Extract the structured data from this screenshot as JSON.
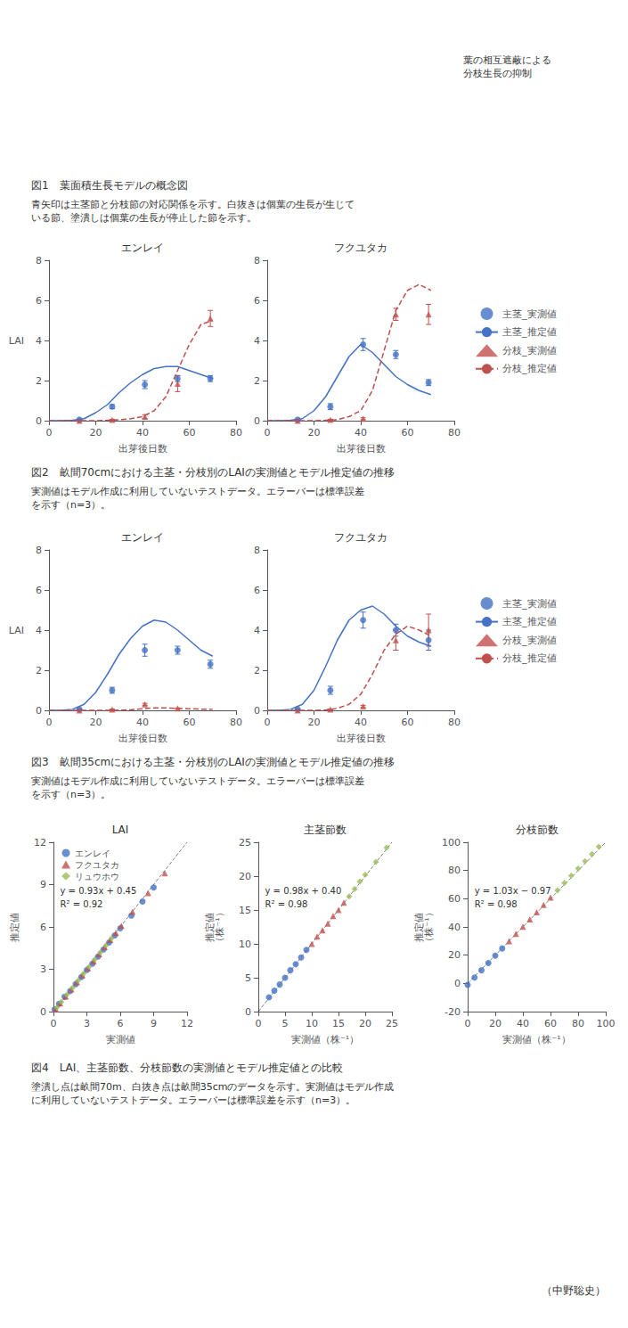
{
  "chart_data": [
    {
      "type": "text",
      "annotations": [
        "葉の相互遮蔽による\n分枝生長の抑制"
      ]
    },
    {
      "type": "text",
      "annotations": [
        "図1　葉面積生長モデルの概念図",
        "青矢印は主茎節と分枝節の対応関係を示す。白抜きは個葉の生長が生じて\nいる節、塗潰しは個葉の生長が停止した節を示す。"
      ]
    },
    {
      "type": "line",
      "title": "エンレイ",
      "xlabel": "出芽後日数",
      "ylabel": "LAI",
      "xlim": [
        0,
        80
      ],
      "ylim": [
        0,
        8
      ],
      "xticks": [
        0,
        20,
        40,
        60,
        80
      ],
      "yticks": [
        0,
        2,
        4,
        6,
        8
      ],
      "grid": false,
      "series": [
        {
          "name": "主茎_実測値",
          "type": "scatter",
          "marker": "circle",
          "color": "#4472C4",
          "x": [
            13,
            27,
            41,
            55,
            69
          ],
          "values": [
            0.05,
            0.7,
            1.8,
            2.1,
            2.1
          ],
          "errors": [
            0.02,
            0.1,
            0.2,
            0.15,
            0.15
          ]
        },
        {
          "name": "主茎_推定値",
          "type": "line",
          "line_style": "solid",
          "color": "#4472C4",
          "x": [
            0,
            5,
            10,
            15,
            20,
            25,
            30,
            35,
            40,
            45,
            50,
            55,
            60,
            65,
            70
          ],
          "values": [
            0,
            0,
            0.02,
            0.1,
            0.4,
            0.8,
            1.4,
            1.9,
            2.3,
            2.6,
            2.7,
            2.7,
            2.5,
            2.3,
            2.1
          ]
        },
        {
          "name": "分枝_実測値",
          "type": "scatter",
          "marker": "triangle",
          "color": "#C0504D",
          "x": [
            13,
            27,
            41,
            55,
            69
          ],
          "values": [
            0.0,
            0.05,
            0.2,
            1.85,
            5.1
          ],
          "errors": [
            0.0,
            0.02,
            0.1,
            0.4,
            0.4
          ]
        },
        {
          "name": "分枝_推定値",
          "type": "line",
          "line_style": "dashed",
          "color": "#C0504D",
          "x": [
            0,
            5,
            10,
            15,
            20,
            25,
            30,
            35,
            40,
            45,
            50,
            55,
            60,
            65,
            70
          ],
          "values": [
            0,
            0,
            0,
            0,
            0,
            0.02,
            0.05,
            0.1,
            0.2,
            0.5,
            1.2,
            2.5,
            3.8,
            4.8,
            5.0
          ]
        }
      ]
    },
    {
      "type": "line",
      "title": "フクユタカ",
      "xlabel": "出芽後日数",
      "xlim": [
        0,
        80
      ],
      "ylim": [
        0,
        8
      ],
      "xticks": [
        0,
        20,
        40,
        60,
        80
      ],
      "yticks": [
        0,
        2,
        4,
        6,
        8
      ],
      "grid": false,
      "legend": "right",
      "series": [
        {
          "name": "主茎_実測値",
          "type": "scatter",
          "marker": "circle",
          "color": "#4472C4",
          "x": [
            13,
            27,
            41,
            55,
            69
          ],
          "values": [
            0.05,
            0.7,
            3.8,
            3.3,
            1.9
          ],
          "errors": [
            0.02,
            0.15,
            0.3,
            0.2,
            0.15
          ]
        },
        {
          "name": "主茎_推定値",
          "type": "line",
          "line_style": "solid",
          "color": "#4472C4",
          "x": [
            0,
            5,
            10,
            15,
            20,
            25,
            30,
            35,
            40,
            45,
            50,
            55,
            60,
            65,
            70
          ],
          "values": [
            0,
            0,
            0.02,
            0.1,
            0.5,
            1.2,
            2.2,
            3.2,
            3.8,
            3.4,
            2.8,
            2.2,
            1.8,
            1.5,
            1.3
          ]
        },
        {
          "name": "分枝_実測値",
          "type": "scatter",
          "marker": "triangle",
          "color": "#C0504D",
          "x": [
            13,
            27,
            41,
            55,
            69
          ],
          "values": [
            0.0,
            0.05,
            0.1,
            5.3,
            5.3
          ],
          "errors": [
            0.0,
            0.02,
            0.05,
            0.3,
            0.5
          ]
        },
        {
          "name": "分枝_推定値",
          "type": "line",
          "line_style": "dashed",
          "color": "#C0504D",
          "x": [
            0,
            5,
            10,
            15,
            20,
            25,
            30,
            35,
            40,
            45,
            50,
            55,
            60,
            65,
            70
          ],
          "values": [
            0,
            0,
            0,
            0,
            0,
            0.02,
            0.05,
            0.2,
            0.5,
            1.5,
            3.5,
            5.5,
            6.5,
            6.8,
            6.5
          ]
        }
      ]
    },
    {
      "type": "text",
      "annotations": [
        "図2　畝間70cmにおける主茎・分枝別のLAIの実測値とモデル推定値の推移",
        "実測値はモデル作成に利用していないテストデータ。エラーバーは標準誤差\nを示す（n=3）。"
      ]
    },
    {
      "type": "line",
      "title": "エンレイ",
      "xlabel": "出芽後日数",
      "ylabel": "LAI",
      "xlim": [
        0,
        80
      ],
      "ylim": [
        0,
        8
      ],
      "xticks": [
        0,
        20,
        40,
        60,
        80
      ],
      "yticks": [
        0,
        2,
        4,
        6,
        8
      ],
      "grid": false,
      "series": [
        {
          "name": "主茎_実測値",
          "type": "scatter",
          "marker": "circle",
          "color": "#4472C4",
          "x": [
            13,
            27,
            41,
            55,
            69
          ],
          "values": [
            0.05,
            1.0,
            3.0,
            3.0,
            2.3
          ],
          "errors": [
            0.02,
            0.15,
            0.3,
            0.2,
            0.2
          ]
        },
        {
          "name": "主茎_推定値",
          "type": "line",
          "line_style": "solid",
          "color": "#4472C4",
          "x": [
            0,
            5,
            10,
            15,
            20,
            25,
            30,
            35,
            40,
            45,
            50,
            55,
            60,
            65,
            70
          ],
          "values": [
            0,
            0,
            0.05,
            0.3,
            0.9,
            1.8,
            2.8,
            3.6,
            4.2,
            4.5,
            4.4,
            4.0,
            3.5,
            3.0,
            2.7
          ]
        },
        {
          "name": "分枝_実測値",
          "type": "scatter",
          "marker": "triangle",
          "color": "#C0504D",
          "x": [
            13,
            27,
            41,
            55
          ],
          "values": [
            0.0,
            0.05,
            0.3,
            0.1
          ],
          "errors": [
            0.0,
            0.02,
            0.05,
            0.02
          ]
        },
        {
          "name": "分枝_推定値",
          "type": "line",
          "line_style": "dashed",
          "color": "#C0504D",
          "x": [
            0,
            5,
            10,
            15,
            20,
            25,
            30,
            35,
            40,
            45,
            50,
            55,
            60,
            65,
            70
          ],
          "values": [
            0,
            0,
            0,
            0,
            0,
            0,
            0.01,
            0.03,
            0.08,
            0.12,
            0.12,
            0.1,
            0.08,
            0.06,
            0.05
          ]
        }
      ]
    },
    {
      "type": "line",
      "title": "フクユタカ",
      "xlabel": "出芽後日数",
      "xlim": [
        0,
        80
      ],
      "ylim": [
        0,
        8
      ],
      "xticks": [
        0,
        20,
        40,
        60,
        80
      ],
      "yticks": [
        0,
        2,
        4,
        6,
        8
      ],
      "grid": false,
      "legend": "right",
      "series": [
        {
          "name": "主茎_実測値",
          "type": "scatter",
          "marker": "circle",
          "color": "#4472C4",
          "x": [
            13,
            27,
            41,
            55,
            69
          ],
          "values": [
            0.05,
            1.0,
            4.5,
            4.0,
            3.5
          ],
          "errors": [
            0.02,
            0.2,
            0.4,
            0.3,
            0.5
          ]
        },
        {
          "name": "主茎_推定値",
          "type": "line",
          "line_style": "solid",
          "color": "#4472C4",
          "x": [
            0,
            5,
            10,
            15,
            20,
            25,
            30,
            35,
            40,
            45,
            50,
            55,
            60,
            65,
            70
          ],
          "values": [
            0,
            0,
            0.05,
            0.3,
            1.0,
            2.2,
            3.5,
            4.5,
            5.0,
            5.2,
            4.8,
            4.2,
            3.7,
            3.4,
            3.2
          ]
        },
        {
          "name": "分枝_実測値",
          "type": "scatter",
          "marker": "triangle",
          "color": "#C0504D",
          "x": [
            13,
            27,
            41,
            55,
            69
          ],
          "values": [
            0.0,
            0.05,
            0.2,
            3.5,
            4.0
          ],
          "errors": [
            0.0,
            0.02,
            0.05,
            0.5,
            0.8
          ]
        },
        {
          "name": "分枝_推定値",
          "type": "line",
          "line_style": "dashed",
          "color": "#C0504D",
          "x": [
            0,
            5,
            10,
            15,
            20,
            25,
            30,
            35,
            40,
            45,
            50,
            55,
            60,
            65,
            70
          ],
          "values": [
            0,
            0,
            0,
            0,
            0,
            0.02,
            0.1,
            0.3,
            0.8,
            1.8,
            3.0,
            3.8,
            4.2,
            4.0,
            3.7
          ]
        }
      ]
    },
    {
      "type": "text",
      "annotations": [
        "図3　畝間35cmにおける主茎・分枝別のLAIの実測値とモデル推定値の推移",
        "実測値はモデル作成に利用していないテストデータ。エラーバーは標準誤差\nを示す（n=3）。"
      ]
    },
    {
      "type": "scatter",
      "title": "LAI",
      "xlabel": "実測値",
      "ylabel": "推定値",
      "xlim": [
        0,
        12
      ],
      "ylim": [
        0,
        12
      ],
      "xticks": [
        0,
        3,
        6,
        9,
        12
      ],
      "yticks": [
        0,
        3,
        6,
        9,
        12
      ],
      "grid": false,
      "legend": "upper left",
      "annotations": [
        "y = 0.93x + 0.45",
        "R² = 0.92"
      ],
      "series": [
        {
          "name": "エンレイ",
          "marker": "circle",
          "color": "#4472C4",
          "x": [
            0.1,
            0.5,
            1.0,
            1.5,
            2.0,
            2.5,
            3.0,
            3.5,
            4.0,
            4.5,
            5.0,
            5.5,
            6.0,
            7.0,
            8.0,
            9.0
          ],
          "values": [
            0.15,
            0.55,
            1.05,
            1.45,
            1.95,
            2.45,
            2.95,
            3.4,
            3.9,
            4.4,
            4.9,
            5.4,
            5.9,
            6.8,
            7.8,
            8.8
          ]
        },
        {
          "name": "フクユタカ",
          "marker": "triangle",
          "color": "#C0504D",
          "x": [
            0.2,
            0.6,
            1.1,
            1.6,
            2.1,
            2.6,
            3.1,
            3.6,
            4.1,
            4.6,
            5.1,
            5.6,
            6.1,
            7.1,
            8.5,
            10.0
          ],
          "values": [
            0.18,
            0.58,
            1.08,
            1.58,
            2.08,
            2.58,
            3.08,
            3.58,
            4.08,
            4.58,
            5.08,
            5.58,
            6.08,
            7.08,
            8.4,
            9.8
          ]
        },
        {
          "name": "リュウホウ",
          "marker": "diamond",
          "color": "#9BBB59",
          "x": [
            0.3,
            0.7,
            1.2,
            1.7,
            2.2,
            2.7,
            3.2,
            3.7,
            4.2,
            4.7,
            5.2
          ],
          "values": [
            0.28,
            0.68,
            1.18,
            1.68,
            2.18,
            2.68,
            3.18,
            3.68,
            4.18,
            4.68,
            5.18
          ]
        },
        {
          "type": "line",
          "line_style": "dashed",
          "color": "#000000",
          "x": [
            0,
            12
          ],
          "values": [
            0,
            12
          ]
        }
      ]
    },
    {
      "type": "scatter",
      "title": "主茎節数",
      "xlabel": "実測値（株⁻¹）",
      "ylabel": "推定値\n（株⁻¹）",
      "xlim": [
        0,
        25
      ],
      "ylim": [
        0,
        25
      ],
      "xticks": [
        0,
        5,
        10,
        15,
        20,
        25
      ],
      "yticks": [
        0,
        5,
        10,
        15,
        20,
        25
      ],
      "grid": false,
      "annotations": [
        "y = 0.98x + 0.40",
        "R² = 0.98"
      ],
      "series": [
        {
          "marker": "circle",
          "color": "#4472C4",
          "x": [
            2,
            3,
            4,
            5,
            6,
            7,
            8,
            9
          ],
          "values": [
            2.1,
            3.1,
            4.0,
            5.0,
            6.1,
            7.0,
            8.0,
            9.1
          ]
        },
        {
          "marker": "triangle",
          "color": "#C0504D",
          "x": [
            10,
            11,
            12,
            13,
            14,
            15,
            16
          ],
          "values": [
            10.0,
            11.1,
            12.0,
            13.0,
            14.1,
            15.0,
            16.1
          ]
        },
        {
          "marker": "diamond",
          "color": "#9BBB59",
          "x": [
            17,
            18,
            19,
            20,
            22,
            24
          ],
          "values": [
            17.0,
            18.1,
            19.2,
            20.2,
            22.1,
            24.2
          ]
        },
        {
          "type": "line",
          "line_style": "dashed",
          "color": "#000000",
          "x": [
            0,
            25
          ],
          "values": [
            0,
            25
          ]
        }
      ]
    },
    {
      "type": "scatter",
      "title": "分枝節数",
      "xlabel": "実測値（株⁻¹）",
      "ylabel": "推定値\n（株⁻¹）",
      "xlim": [
        0,
        100
      ],
      "ylim": [
        -20,
        100
      ],
      "xticks": [
        0,
        20,
        40,
        60,
        80,
        100
      ],
      "yticks": [
        -20,
        0,
        20,
        40,
        60,
        80,
        100
      ],
      "grid": false,
      "annotations": [
        "y = 1.03x − 0.97",
        "R² = 0.98"
      ],
      "series": [
        {
          "marker": "circle",
          "color": "#4472C4",
          "x": [
            0,
            5,
            10,
            15,
            20,
            25
          ],
          "values": [
            -1,
            4.15,
            9.3,
            14.45,
            19.6,
            24.75
          ]
        },
        {
          "marker": "triangle",
          "color": "#C0504D",
          "x": [
            30,
            35,
            40,
            45,
            50,
            55,
            60
          ],
          "values": [
            29.9,
            35.05,
            40.2,
            45.35,
            50.5,
            55.65,
            60.8
          ]
        },
        {
          "marker": "diamond",
          "color": "#9BBB59",
          "x": [
            65,
            70,
            75,
            80,
            85,
            90,
            95
          ],
          "values": [
            65.95,
            71.1,
            76.25,
            81.4,
            86.55,
            91.7,
            96.85
          ]
        },
        {
          "type": "line",
          "line_style": "dashed",
          "color": "#000000",
          "x": [
            0,
            100
          ],
          "values": [
            0,
            100
          ]
        }
      ]
    },
    {
      "type": "text",
      "annotations": [
        "図4　LAI、主茎節数、分枝節数の実測値とモデル推定値との比較",
        "塗潰し点は畝間70m、白抜き点は畝間35cmのデータを示す。実測値はモデル作成\nに利用していないテストデータ。エラーバーは標準誤差を示す（n=3）。"
      ]
    },
    {
      "type": "text",
      "annotations": [
        "（中野聡史）"
      ]
    }
  ]
}
